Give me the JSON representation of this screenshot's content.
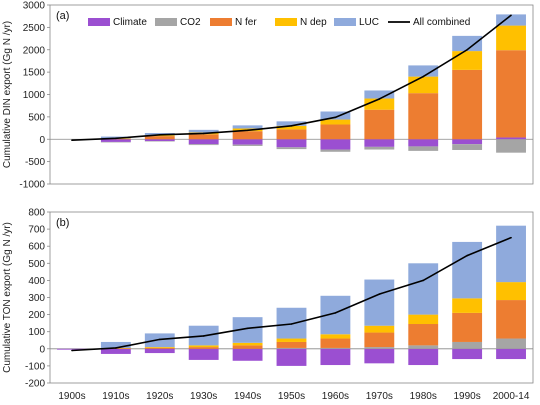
{
  "chart_data": [
    {
      "type": "bar",
      "stacked": true,
      "panel_label": "(a)",
      "ylabel": "Cumulative DIN export (Gg N /yr)",
      "ylim": [
        -1000,
        3000
      ],
      "yticks": [
        -1000,
        -500,
        0,
        500,
        1000,
        1500,
        2000,
        2500,
        3000
      ],
      "grid": false,
      "legend": "top",
      "categories": [
        "1900s",
        "1910s",
        "1920s",
        "1930s",
        "1940s",
        "1950s",
        "1960s",
        "1970s",
        "1980s",
        "1990s",
        "2000-14"
      ],
      "series": [
        {
          "name": "Climate",
          "color": "#9b4fd1",
          "values": [
            0,
            -60,
            -40,
            -110,
            -120,
            -180,
            -230,
            -170,
            -160,
            -110,
            40
          ]
        },
        {
          "name": "CO2",
          "color": "#a5a5a5",
          "values": [
            0,
            -10,
            -10,
            -20,
            -30,
            -40,
            -50,
            -60,
            -100,
            -130,
            -300
          ]
        },
        {
          "name": "N fer",
          "color": "#ed7d31",
          "values": [
            0,
            10,
            70,
            110,
            180,
            220,
            330,
            660,
            1030,
            1550,
            1950
          ]
        },
        {
          "name": "N dep",
          "color": "#ffc000",
          "values": [
            0,
            10,
            20,
            40,
            60,
            80,
            110,
            250,
            370,
            420,
            550
          ]
        },
        {
          "name": "LUC",
          "color": "#8faadc",
          "values": [
            0,
            40,
            50,
            60,
            70,
            100,
            180,
            180,
            250,
            340,
            250
          ]
        }
      ],
      "line": {
        "name": "All combined",
        "color": "#000000",
        "values": [
          -20,
          20,
          100,
          130,
          200,
          300,
          490,
          900,
          1400,
          2000,
          2770
        ]
      }
    },
    {
      "type": "bar",
      "stacked": true,
      "panel_label": "(b)",
      "ylabel": "Cumulative TON  export (Gg N /yr)",
      "ylim": [
        -200,
        800
      ],
      "yticks": [
        -200,
        -100,
        0,
        100,
        200,
        300,
        400,
        500,
        600,
        700,
        800
      ],
      "grid": false,
      "categories": [
        "1900s",
        "1910s",
        "1920s",
        "1930s",
        "1940s",
        "1950s",
        "1960s",
        "1970s",
        "1980s",
        "1990s",
        "2000-14"
      ],
      "series": [
        {
          "name": "Climate",
          "color": "#9b4fd1",
          "values": [
            -5,
            -30,
            -25,
            -65,
            -70,
            -100,
            -95,
            -85,
            -95,
            -60,
            -60
          ]
        },
        {
          "name": "CO2",
          "color": "#a5a5a5",
          "values": [
            0,
            0,
            0,
            0,
            0,
            5,
            5,
            10,
            20,
            40,
            60
          ]
        },
        {
          "name": "N fer",
          "color": "#ed7d31",
          "values": [
            0,
            3,
            5,
            10,
            20,
            35,
            55,
            85,
            125,
            170,
            225
          ]
        },
        {
          "name": "N dep",
          "color": "#ffc000",
          "values": [
            0,
            2,
            5,
            10,
            15,
            20,
            25,
            40,
            55,
            85,
            105
          ]
        },
        {
          "name": "LUC",
          "color": "#8faadc",
          "values": [
            0,
            35,
            80,
            115,
            150,
            180,
            225,
            270,
            300,
            330,
            330
          ]
        }
      ],
      "line": {
        "name": "All combined",
        "color": "#000000",
        "values": [
          -10,
          5,
          55,
          75,
          120,
          145,
          210,
          320,
          400,
          545,
          650
        ]
      }
    }
  ]
}
